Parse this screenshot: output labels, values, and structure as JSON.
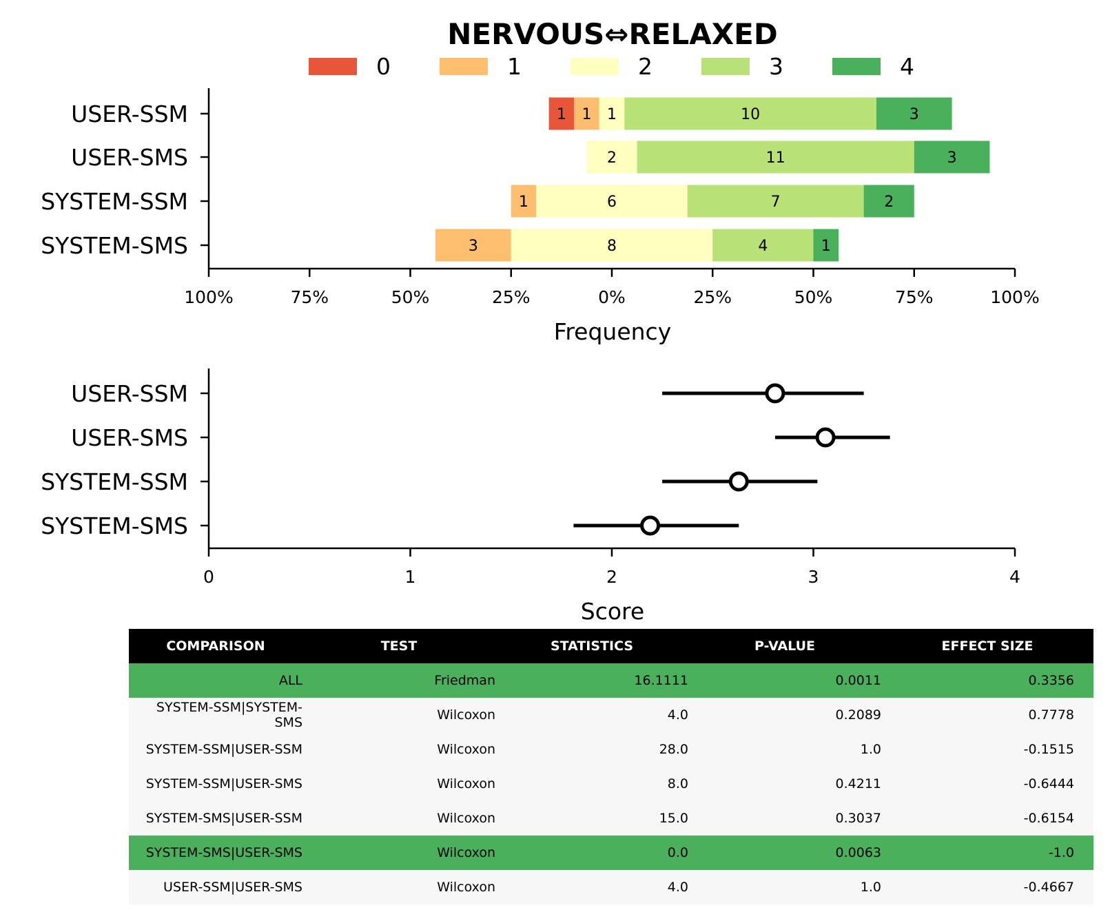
{
  "chart_data": [
    {
      "type": "bar",
      "subtype": "diverging-stacked-horizontal",
      "title": "NERVOUS⇔RELAXED",
      "xlabel": "Frequency",
      "ylabel": "",
      "xlim": [
        -100,
        100
      ],
      "x_ticks": [
        "100%",
        "75%",
        "50%",
        "25%",
        "0%",
        "25%",
        "50%",
        "75%",
        "100%"
      ],
      "legend_placement": "top",
      "legend": [
        "0",
        "1",
        "2",
        "3",
        "4"
      ],
      "colors": [
        "#e8563a",
        "#fdbf6f",
        "#ffffbf",
        "#b8e278",
        "#4bb05c"
      ],
      "categories": [
        "USER-SSM",
        "USER-SMS",
        "SYSTEM-SSM",
        "SYSTEM-SMS"
      ],
      "series": [
        {
          "name": "0",
          "values": [
            1,
            0,
            0,
            0
          ]
        },
        {
          "name": "1",
          "values": [
            1,
            0,
            1,
            3
          ]
        },
        {
          "name": "2",
          "values": [
            1,
            2,
            6,
            8
          ]
        },
        {
          "name": "3",
          "values": [
            10,
            11,
            7,
            4
          ]
        },
        {
          "name": "4",
          "values": [
            3,
            3,
            2,
            1
          ]
        }
      ],
      "grid": false
    },
    {
      "type": "scatter",
      "subtype": "point-with-errorbars",
      "title": "",
      "xlabel": "Score",
      "ylabel": "",
      "xlim": [
        0,
        4
      ],
      "x_ticks": [
        "0",
        "1",
        "2",
        "3",
        "4"
      ],
      "categories": [
        "USER-SSM",
        "USER-SMS",
        "SYSTEM-SSM",
        "SYSTEM-SMS"
      ],
      "mean": [
        2.81,
        3.06,
        2.63,
        2.19
      ],
      "ci_low": [
        2.25,
        2.81,
        2.25,
        1.81
      ],
      "ci_high": [
        3.25,
        3.38,
        3.02,
        2.63
      ],
      "grid": false
    },
    {
      "type": "table",
      "columns": [
        "COMPARISON",
        "TEST",
        "STATISTICS",
        "P-VALUE",
        "EFFECT SIZE"
      ],
      "highlight_color": "#4bb05c",
      "stripe_color": "#f7f7f7",
      "rows": [
        {
          "cells": [
            "ALL",
            "Friedman",
            "16.1111",
            "0.0011",
            "0.3356"
          ],
          "highlight": true
        },
        {
          "cells": [
            "SYSTEM-SSM|SYSTEM-SMS",
            "Wilcoxon",
            "4.0",
            "0.2089",
            "0.7778"
          ],
          "highlight": false
        },
        {
          "cells": [
            "SYSTEM-SSM|USER-SSM",
            "Wilcoxon",
            "28.0",
            "1.0",
            "-0.1515"
          ],
          "highlight": false
        },
        {
          "cells": [
            "SYSTEM-SSM|USER-SMS",
            "Wilcoxon",
            "8.0",
            "0.4211",
            "-0.6444"
          ],
          "highlight": false
        },
        {
          "cells": [
            "SYSTEM-SMS|USER-SSM",
            "Wilcoxon",
            "15.0",
            "0.3037",
            "-0.6154"
          ],
          "highlight": false
        },
        {
          "cells": [
            "SYSTEM-SMS|USER-SMS",
            "Wilcoxon",
            "0.0",
            "0.0063",
            "-1.0"
          ],
          "highlight": true
        },
        {
          "cells": [
            "USER-SSM|USER-SMS",
            "Wilcoxon",
            "4.0",
            "1.0",
            "-0.4667"
          ],
          "highlight": false
        }
      ]
    }
  ]
}
